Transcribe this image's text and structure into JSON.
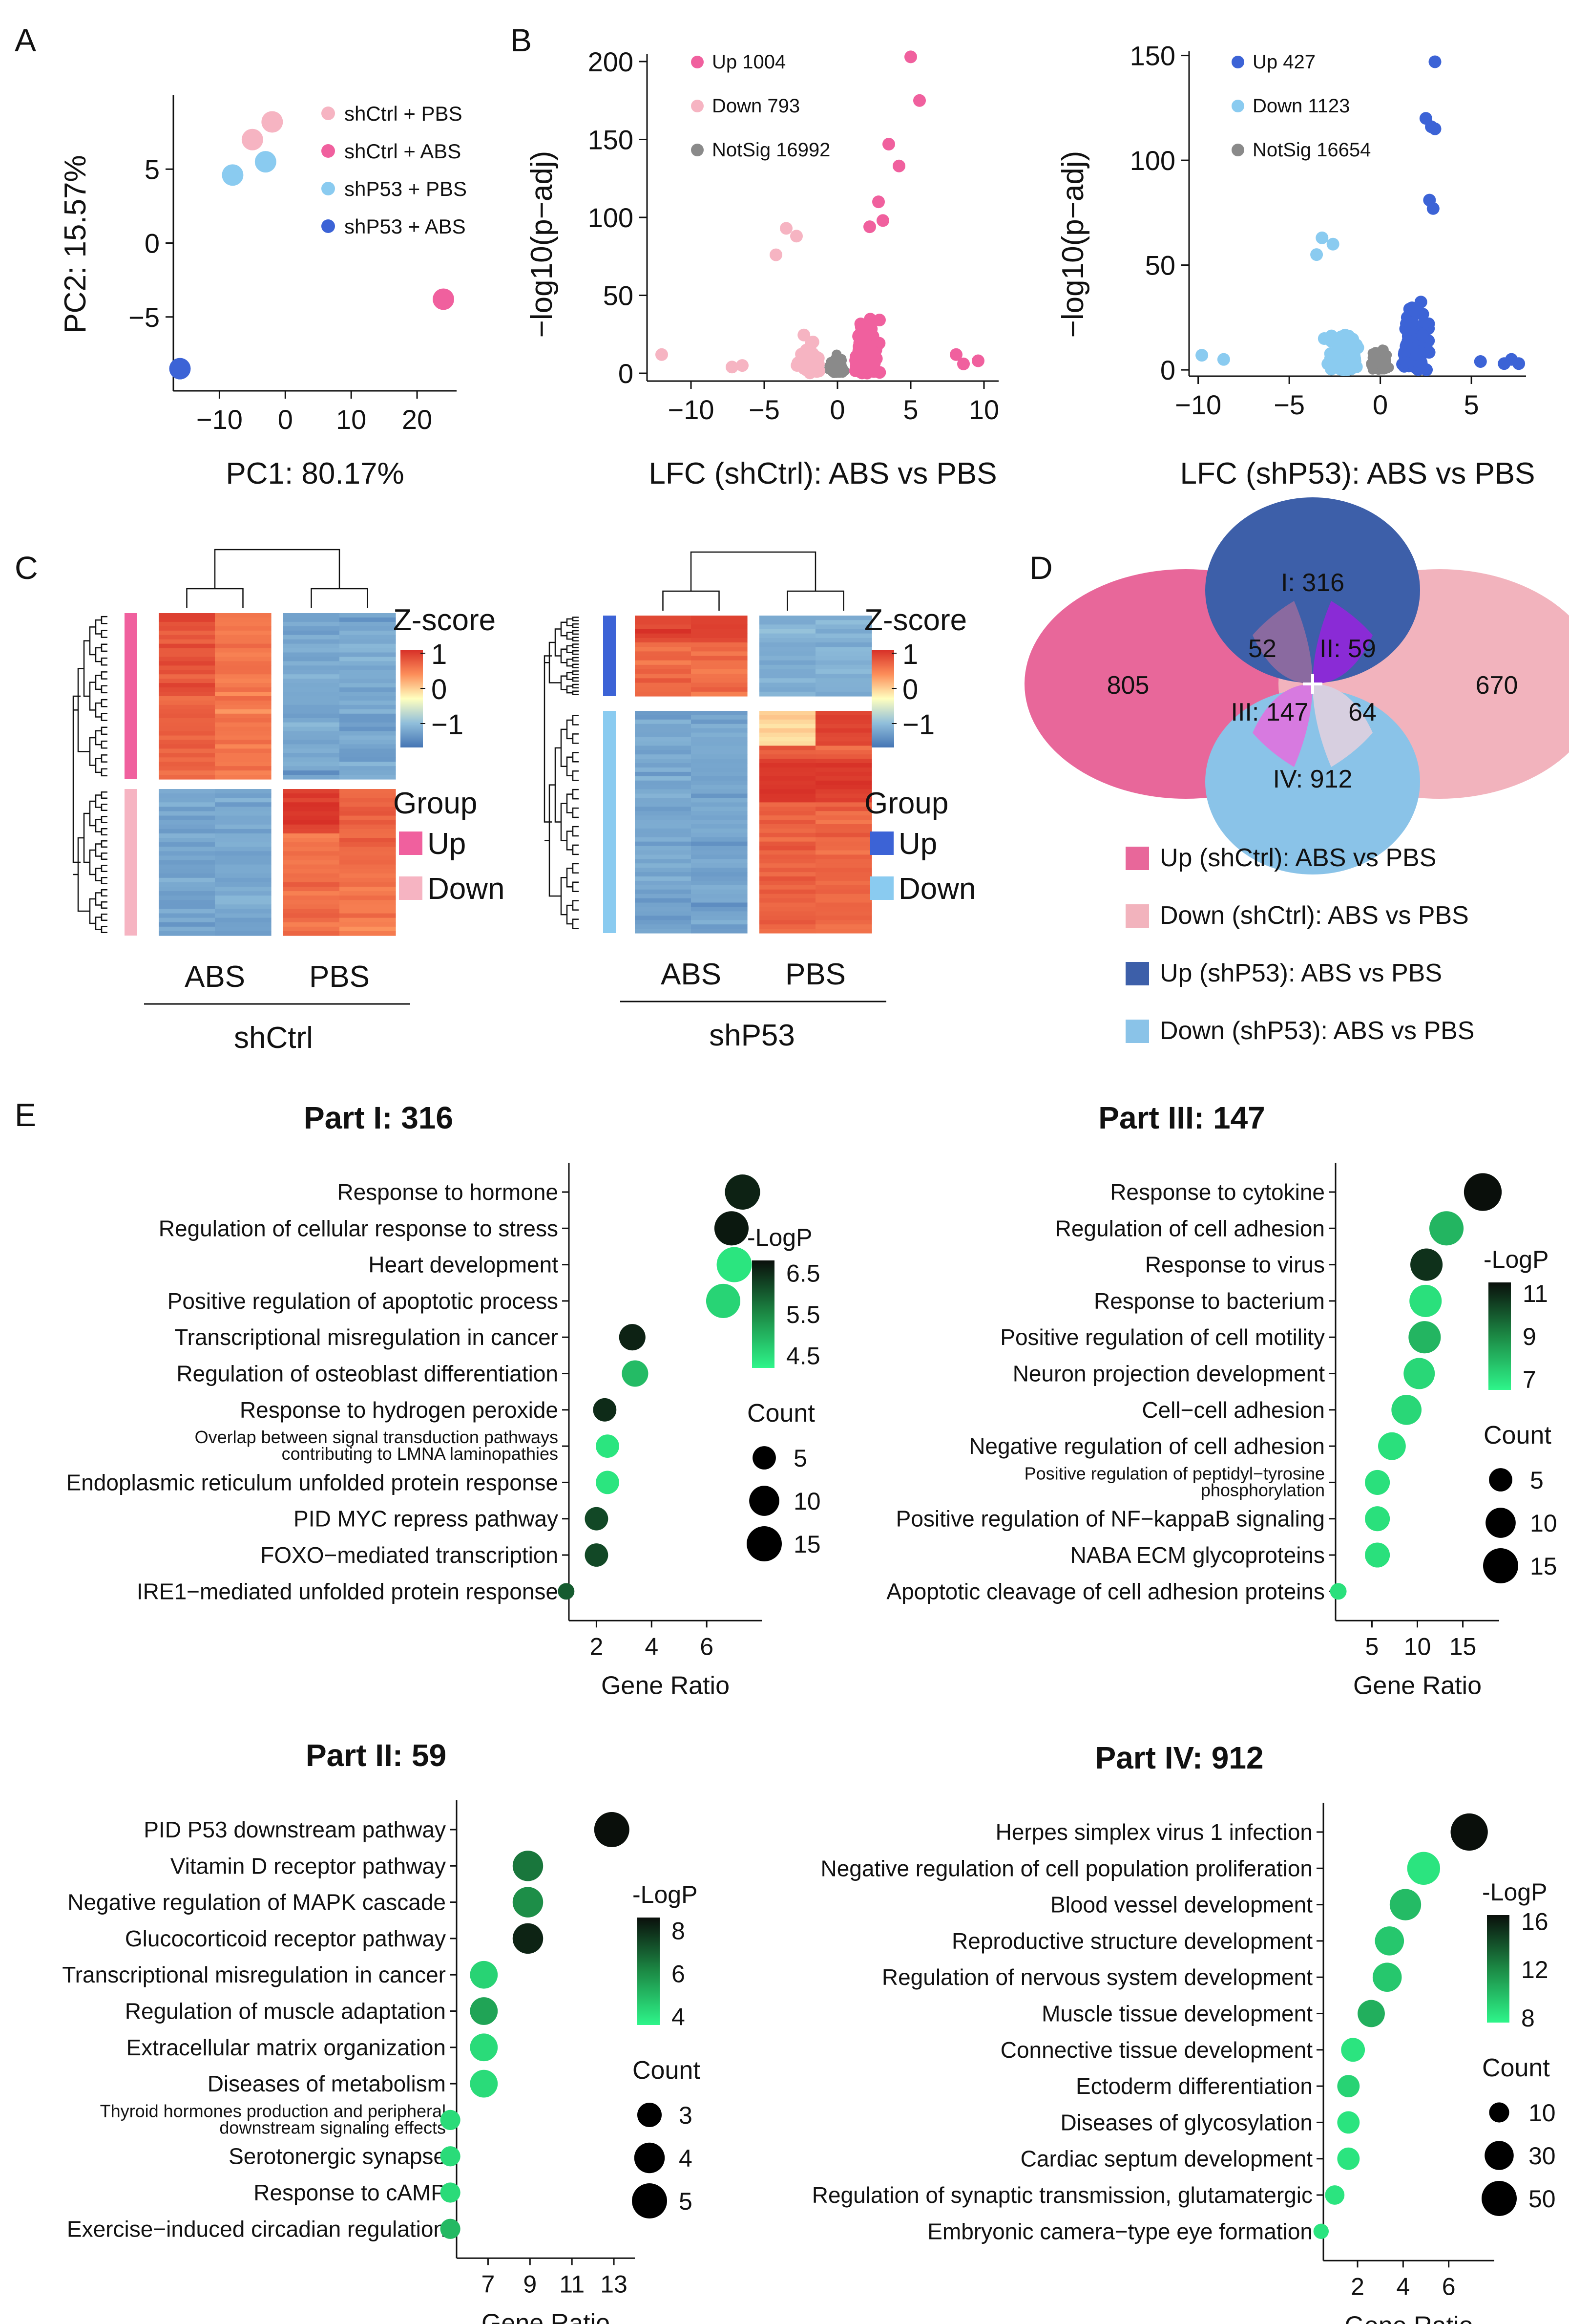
{
  "colors": {
    "up_shctrl": "#f0609e",
    "down_shctrl": "#f6b4c2",
    "up_shp53": "#3c63d6",
    "down_shp53": "#8acbf0",
    "notsig": "#8a8a8a",
    "venn_I": "#3d5fa9",
    "venn_II": "#8a2bd6",
    "venn_III": "#d77ae0",
    "venn_IV": "#8ac3e8",
    "venn_left": "#e8679a",
    "venn_right": "#f2b3bd",
    "venn_I_left": "#8a6aa0",
    "venn_right_IV": "#d7cfe0",
    "title_I": "#3d5fa9",
    "title_II": "#8a2bd6",
    "title_III": "#e34ae6",
    "title_IV": "#86c4ec"
  },
  "panels": {
    "A": "A",
    "B": "B",
    "C": "C",
    "D": "D",
    "E": "E"
  },
  "chart_data": [
    {
      "id": "pca",
      "type": "scatter",
      "xlabel": "PC1: 80.17%",
      "ylabel": "PC2: 15.57%",
      "xlim": [
        -17,
        26
      ],
      "ylim": [
        -10,
        10
      ],
      "xticks": [
        -10,
        0,
        10,
        20
      ],
      "xtick_labels": [
        "−10",
        "0",
        "10",
        "20"
      ],
      "yticks": [
        -5,
        0,
        5
      ],
      "ytick_labels": [
        "−5",
        "0",
        "5"
      ],
      "legend": [
        "shCtrl + PBS",
        "shCtrl + ABS",
        "shP53 + PBS",
        "shP53 + ABS"
      ],
      "legend_colors": [
        "#f6b4c2",
        "#f0609e",
        "#8acbf0",
        "#3c63d6"
      ],
      "points": [
        {
          "group": "shCtrl + PBS",
          "x": -2,
          "y": 8.2
        },
        {
          "group": "shCtrl + PBS",
          "x": -5,
          "y": 7.0
        },
        {
          "group": "shCtrl + ABS",
          "x": 24,
          "y": -3.8
        },
        {
          "group": "shP53 + PBS",
          "x": -3,
          "y": 5.5
        },
        {
          "group": "shP53 + PBS",
          "x": -8,
          "y": 4.6
        },
        {
          "group": "shP53 + ABS",
          "x": -16,
          "y": -8.5
        }
      ]
    },
    {
      "id": "volcano_shctrl",
      "type": "scatter",
      "xlabel": "LFC (shCtrl): ABS vs PBS",
      "ylabel": "−log10(p−adj)",
      "xlim": [
        -13,
        11
      ],
      "ylim": [
        -5,
        205
      ],
      "xticks": [
        -10,
        -5,
        0,
        5,
        10
      ],
      "xtick_labels": [
        "−10",
        "−5",
        "0",
        "5",
        "10"
      ],
      "yticks": [
        0,
        50,
        100,
        150,
        200
      ],
      "ytick_labels": [
        "0",
        "50",
        "100",
        "150",
        "200"
      ],
      "legend": [
        "Up 1004",
        "Down 793",
        "NotSig 16992"
      ],
      "legend_colors": [
        "#f0609e",
        "#f6b4c2",
        "#8a8a8a"
      ],
      "highlight_points": [
        {
          "x": 5.0,
          "y": 203,
          "cls": "up"
        },
        {
          "x": 5.6,
          "y": 175,
          "cls": "up"
        },
        {
          "x": 3.5,
          "y": 147,
          "cls": "up"
        },
        {
          "x": 4.2,
          "y": 133,
          "cls": "up"
        },
        {
          "x": 2.8,
          "y": 110,
          "cls": "up"
        },
        {
          "x": 2.2,
          "y": 94,
          "cls": "up"
        },
        {
          "x": 3.1,
          "y": 98,
          "cls": "up"
        },
        {
          "x": 9.6,
          "y": 8,
          "cls": "up"
        },
        {
          "x": 8.6,
          "y": 6,
          "cls": "up"
        },
        {
          "x": 8.1,
          "y": 12,
          "cls": "up"
        },
        {
          "x": -12,
          "y": 12,
          "cls": "down"
        },
        {
          "x": -3.5,
          "y": 93,
          "cls": "down"
        },
        {
          "x": -2.8,
          "y": 88,
          "cls": "down"
        },
        {
          "x": -4.2,
          "y": 76,
          "cls": "down"
        },
        {
          "x": -6.5,
          "y": 5,
          "cls": "down"
        },
        {
          "x": -7.2,
          "y": 4,
          "cls": "down"
        }
      ]
    },
    {
      "id": "volcano_shp53",
      "type": "scatter",
      "xlabel": "LFC (shP53): ABS vs PBS",
      "ylabel": "−log10(p−adj)",
      "xlim": [
        -10.5,
        8
      ],
      "ylim": [
        -3,
        152
      ],
      "xticks": [
        -10,
        -5,
        0,
        5
      ],
      "xtick_labels": [
        "−10",
        "−5",
        "0",
        "5"
      ],
      "yticks": [
        0,
        50,
        100,
        150
      ],
      "ytick_labels": [
        "0",
        "50",
        "100",
        "150"
      ],
      "legend": [
        "Up 427",
        "Down 1123",
        "NotSig 16654"
      ],
      "legend_colors": [
        "#3c63d6",
        "#8acbf0",
        "#8a8a8a"
      ],
      "highlight_points": [
        {
          "x": 3.0,
          "y": 147,
          "cls": "up"
        },
        {
          "x": 2.5,
          "y": 120,
          "cls": "up"
        },
        {
          "x": 2.8,
          "y": 116,
          "cls": "up"
        },
        {
          "x": 3.0,
          "y": 115,
          "cls": "up"
        },
        {
          "x": 2.7,
          "y": 81,
          "cls": "up"
        },
        {
          "x": 2.9,
          "y": 77,
          "cls": "up"
        },
        {
          "x": 7.2,
          "y": 5,
          "cls": "up"
        },
        {
          "x": 7.6,
          "y": 3,
          "cls": "up"
        },
        {
          "x": 6.8,
          "y": 3,
          "cls": "up"
        },
        {
          "x": 5.5,
          "y": 4,
          "cls": "up"
        },
        {
          "x": -9.8,
          "y": 7,
          "cls": "down"
        },
        {
          "x": -8.6,
          "y": 5,
          "cls": "down"
        },
        {
          "x": -3.2,
          "y": 63,
          "cls": "down"
        },
        {
          "x": -2.6,
          "y": 60,
          "cls": "down"
        },
        {
          "x": -3.5,
          "y": 55,
          "cls": "down"
        }
      ]
    },
    {
      "id": "heatmap_shctrl",
      "type": "heatmap",
      "title": "shCtrl",
      "columns": [
        "ABS",
        "PBS"
      ],
      "colorbar_title": "Z-score",
      "colorbar_ticks": [
        "1",
        "0",
        "−1"
      ],
      "group_title": "Group",
      "groups": [
        "Up",
        "Down"
      ],
      "group_colors": [
        "#f0609e",
        "#f6b4c2"
      ]
    },
    {
      "id": "heatmap_shp53",
      "type": "heatmap",
      "title": "shP53",
      "columns": [
        "ABS",
        "PBS"
      ],
      "colorbar_title": "Z-score",
      "colorbar_ticks": [
        "1",
        "0",
        "−1"
      ],
      "group_title": "Group",
      "groups": [
        "Up",
        "Down"
      ],
      "group_colors": [
        "#3c63d6",
        "#8acbf0"
      ]
    },
    {
      "id": "venn",
      "type": "venn",
      "regions": {
        "left_only": "805",
        "right_only": "670",
        "I": "I: 316",
        "II": "II: 59",
        "III": "III: 147",
        "IV": "IV: 912",
        "I_left": "52",
        "right_IV": "64"
      },
      "legend": [
        "Up (shCtrl): ABS vs PBS",
        "Down (shCtrl): ABS vs PBS",
        "Up (shP53): ABS vs PBS",
        "Down (shP53): ABS vs PBS"
      ],
      "legend_colors": [
        "#e8679a",
        "#f2b3bd",
        "#3d5fa9",
        "#8ac3e8"
      ]
    },
    {
      "id": "go_part1",
      "type": "scatter",
      "title": "Part I: 316",
      "xlabel": "Gene Ratio",
      "xlim": [
        1,
        8
      ],
      "xticks": [
        2,
        4,
        6
      ],
      "terms": [
        "Response to hormone",
        "Regulation of cellular response to stress",
        "Heart development",
        "Positive regulation of apoptotic process",
        "Transcriptional misregulation in cancer",
        "Regulation of osteoblast differentiation",
        "Response to hydrogen peroxide",
        "Overlap between signal transduction pathways\ncontributing to LMNA laminopathies",
        "Endoplasmic reticulum unfolded protein response",
        "PID MYC repress pathway",
        "FOXO−mediated transcription",
        "IRE1−mediated unfolded protein response"
      ],
      "gene_ratio": [
        7.3,
        6.9,
        7.0,
        6.6,
        3.3,
        3.4,
        2.3,
        2.4,
        2.4,
        2.0,
        2.0,
        0.9
      ],
      "count": [
        15,
        14,
        15,
        14,
        7,
        7,
        5,
        5,
        5,
        5,
        5,
        2
      ],
      "logp": [
        6.6,
        6.7,
        4.4,
        4.6,
        6.6,
        4.9,
        6.5,
        4.4,
        4.4,
        6.2,
        6.2,
        6.0
      ],
      "colorbar_title": "-LogP",
      "colorbar_range": [
        4.2,
        6.8
      ],
      "colorbar_ticks": [
        4.5,
        5.5,
        6.5
      ],
      "size_title": "Count",
      "size_legend": [
        5,
        10,
        15
      ]
    },
    {
      "id": "go_part3",
      "type": "scatter",
      "title": "Part III: 147",
      "xlabel": "Gene Ratio",
      "xlim": [
        1,
        19
      ],
      "xticks": [
        5,
        10,
        15
      ],
      "terms": [
        "Response to cytokine",
        "Regulation of cell adhesion",
        "Response to virus",
        "Response to bacterium",
        "Positive regulation of cell motility",
        "Neuron projection development",
        "Cell−cell adhesion",
        "Negative regulation of cell adhesion",
        "Positive regulation of peptidyl−tyrosine\nphosphorylation",
        "Positive regulation of NF−kappaB signaling",
        "NABA ECM glycoproteins",
        "Apoptotic cleavage of cell adhesion proteins"
      ],
      "gene_ratio": [
        17.2,
        13.2,
        11.0,
        10.9,
        10.8,
        10.2,
        8.8,
        7.2,
        5.6,
        5.6,
        5.6,
        1.3
      ],
      "count": [
        18,
        14,
        12,
        12,
        12,
        11,
        10,
        8,
        6,
        6,
        6,
        2
      ],
      "logp": [
        11.5,
        8.0,
        10.8,
        7.0,
        8.0,
        7.2,
        7.2,
        7.0,
        7.0,
        7.0,
        7.0,
        7.0
      ],
      "colorbar_title": "-LogP",
      "colorbar_range": [
        6.5,
        11.5
      ],
      "colorbar_ticks": [
        11,
        9,
        7
      ],
      "size_title": "Count",
      "size_legend": [
        5,
        10,
        15
      ]
    },
    {
      "id": "go_part2",
      "type": "scatter",
      "title": "Part II: 59",
      "xlabel": "Gene Ratio",
      "xlim": [
        5.5,
        14
      ],
      "xticks": [
        7,
        9,
        11,
        13
      ],
      "terms": [
        "PID P53 downstream pathway",
        "Vitamin D receptor pathway",
        "Negative regulation of MAPK cascade",
        "Glucocorticoid receptor pathway",
        "Transcriptional misregulation in cancer",
        "Regulation of muscle adaptation",
        "Extracellular matrix organization",
        "Diseases of metabolism",
        "Thyroid hormones production and peripheral\ndownstream signaling effects",
        "Serotonergic synapse",
        "Response to cAMP",
        "Exercise−induced circadian regulation"
      ],
      "gene_ratio": [
        12.9,
        8.9,
        8.9,
        8.9,
        6.8,
        6.8,
        6.8,
        6.8,
        5.2,
        5.2,
        5.2,
        5.2
      ],
      "count": [
        5,
        4,
        4,
        4,
        3.5,
        3.5,
        3.5,
        3.5,
        2.5,
        2.5,
        2.5,
        2.5
      ],
      "logp": [
        8.8,
        6.5,
        6.0,
        8.2,
        4.4,
        5.5,
        4.2,
        4.2,
        4.2,
        4.2,
        4.2,
        5.0
      ],
      "colorbar_title": "-LogP",
      "colorbar_range": [
        3.6,
        8.6
      ],
      "colorbar_ticks": [
        8,
        6,
        4
      ],
      "size_title": "Count",
      "size_legend": [
        3,
        4,
        5
      ]
    },
    {
      "id": "go_part4",
      "type": "scatter",
      "title": "Part IV: 912",
      "xlabel": "Gene Ratio",
      "xlim": [
        0.5,
        8
      ],
      "xticks": [
        2,
        4,
        6
      ],
      "terms": [
        "Herpes simplex virus 1 infection",
        "Negative regulation of cell population proliferation",
        "Blood vessel development",
        "Reproductive structure development",
        "Regulation of nervous system development",
        "Muscle tissue development",
        "Connective tissue development",
        "Ectoderm differentiation",
        "Diseases of glycosylation",
        "Cardiac septum development",
        "Regulation of synaptic transmission, glutamatergic",
        "Embryonic camera−type eye formation"
      ],
      "gene_ratio": [
        6.9,
        4.9,
        4.1,
        3.4,
        3.3,
        2.6,
        1.8,
        1.6,
        1.6,
        1.6,
        1.0,
        0.4
      ],
      "count": [
        58,
        42,
        37,
        30,
        30,
        25,
        17,
        14,
        14,
        14,
        9,
        4
      ],
      "logp": [
        17,
        8.3,
        10,
        9.5,
        9.5,
        10.5,
        8.3,
        9.0,
        8.3,
        8.3,
        8.3,
        8.3
      ],
      "colorbar_title": "-LogP",
      "colorbar_range": [
        7.6,
        16.5
      ],
      "colorbar_ticks": [
        16,
        12,
        8
      ],
      "size_title": "Count",
      "size_legend": [
        10,
        30,
        50
      ]
    }
  ]
}
